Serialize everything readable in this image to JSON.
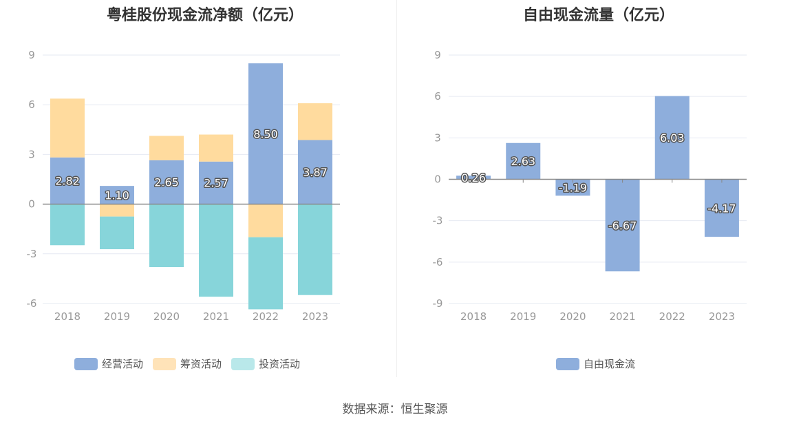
{
  "chart_data": [
    {
      "type": "bar",
      "stacked": true,
      "title": "粤桂股份现金流净额（亿元）",
      "categories": [
        "2018",
        "2019",
        "2020",
        "2021",
        "2022",
        "2023"
      ],
      "series": [
        {
          "name": "经营活动",
          "color": "#8eaedc",
          "values": [
            2.82,
            1.1,
            2.65,
            2.57,
            8.5,
            3.87
          ],
          "labels": [
            "2.82",
            "1.10",
            "2.65",
            "2.57",
            "8.50",
            "3.87"
          ]
        },
        {
          "name": "筹资活动",
          "color": "#ffdb9e",
          "values": [
            3.55,
            -0.75,
            1.47,
            1.63,
            -2.0,
            2.22
          ]
        },
        {
          "name": "投资活动",
          "color": "#87d5da",
          "values": [
            -2.48,
            -1.97,
            -3.8,
            -5.59,
            -4.35,
            -5.49
          ]
        }
      ],
      "ylim": [
        -6,
        9
      ],
      "yticks": [
        "-6",
        "-3",
        "0",
        "3",
        "6",
        "9"
      ],
      "grid": true,
      "legend_position": "bottom"
    },
    {
      "type": "bar",
      "title": "自由现金流量（亿元）",
      "categories": [
        "2018",
        "2019",
        "2020",
        "2021",
        "2022",
        "2023"
      ],
      "series": [
        {
          "name": "自由现金流",
          "color": "#8eaedc",
          "values": [
            0.26,
            2.63,
            -1.19,
            -6.67,
            6.03,
            -4.17
          ],
          "labels": [
            "0.26",
            "2.63",
            "-1.19",
            "-6.67",
            "6.03",
            "-4.17"
          ]
        }
      ],
      "ylim": [
        -9,
        9
      ],
      "yticks": [
        "-9",
        "-6",
        "-3",
        "0",
        "3",
        "6",
        "9"
      ],
      "grid": true,
      "legend_position": "bottom"
    }
  ],
  "legend_left": [
    {
      "label": "经营活动",
      "color": "#8eaedc"
    },
    {
      "label": "筹资活动",
      "color": "#ffe3b8"
    },
    {
      "label": "投资活动",
      "color": "#b9e8ea"
    }
  ],
  "legend_right": [
    {
      "label": "自由现金流",
      "color": "#8eaedc"
    }
  ],
  "source": "数据来源：恒生聚源"
}
